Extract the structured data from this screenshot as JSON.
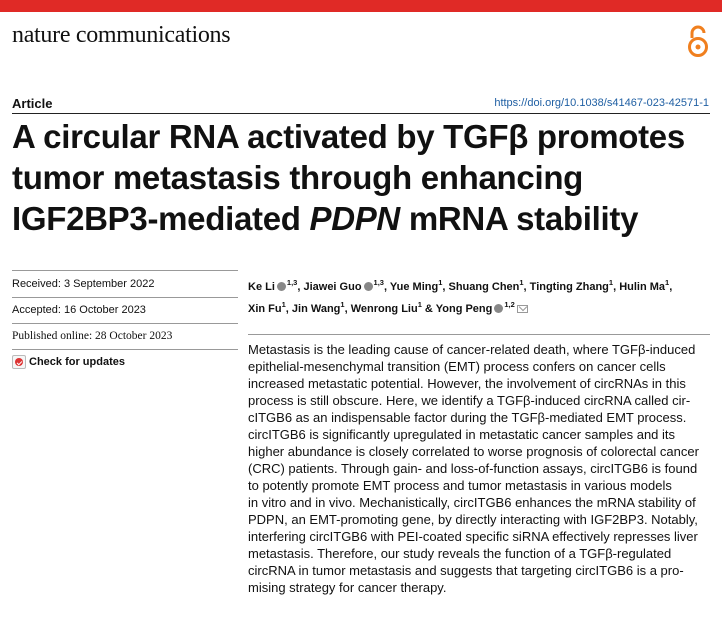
{
  "journal": {
    "name": "nature communications"
  },
  "icons": {
    "open_access": "open-access-icon",
    "orcid": "orcid-icon",
    "email": "mail-icon",
    "check_updates": "check-for-updates-icon"
  },
  "colors": {
    "accent_bar": "#e02a26",
    "open_access": "#f07f1e",
    "doi_link": "#1f5fa3"
  },
  "article": {
    "type": "Article",
    "doi": "https://doi.org/10.1038/s41467-023-42571-1",
    "title_lines": [
      "A circular RNA activated by TGFβ promotes",
      "tumor metastasis through enhancing",
      "IGF2BP3-mediated ",
      "PDPN",
      " mRNA stability"
    ]
  },
  "dates": {
    "received": "Received: 3 September 2022",
    "accepted": "Accepted: 16 October 2023",
    "published": "Published online: 28 October 2023",
    "check_updates": "Check for updates"
  },
  "authors": [
    {
      "name": "Ke Li",
      "sup": "1,3",
      "orcid": true
    },
    {
      "name": "Jiawei Guo",
      "sup": "1,3",
      "orcid": true
    },
    {
      "name": "Yue Ming",
      "sup": "1",
      "orcid": false
    },
    {
      "name": "Shuang Chen",
      "sup": "1",
      "orcid": false
    },
    {
      "name": "Tingting Zhang",
      "sup": "1",
      "orcid": false
    },
    {
      "name": "Hulin Ma",
      "sup": "1",
      "orcid": false
    },
    {
      "name": "Xin Fu",
      "sup": "1",
      "orcid": false
    },
    {
      "name": "Jin Wang",
      "sup": "1",
      "orcid": false
    },
    {
      "name": "Wenrong Liu",
      "sup": "1",
      "orcid": false
    },
    {
      "name": "Yong Peng",
      "sup": "1,2",
      "orcid": true
    }
  ],
  "abstract_lines": [
    "Metastasis is the leading cause of cancer-related death, where TGFβ-induced",
    "epithelial-mesenchymal transition (EMT) process confers on cancer cells",
    "increased metastatic potential. However, the involvement of circRNAs in this",
    "process is still obscure. Here, we identify a TGFβ-induced circRNA called cir-",
    "cITGB6 as an indispensable factor during the TGFβ-mediated EMT process.",
    "circITGB6 is significantly upregulated in metastatic cancer samples and its",
    "higher abundance is closely correlated to worse prognosis of colorectal cancer",
    "(CRC) patients. Through gain- and loss-of-function assays, circITGB6 is found",
    "to potently promote EMT process and tumor metastasis in various models",
    "in vitro and in vivo. Mechanistically, circITGB6 enhances the mRNA stability of",
    "PDPN, an EMT-promoting gene, by directly interacting with IGF2BP3. Notably,",
    "interfering circITGB6 with PEI-coated specific siRNA effectively represses liver",
    "metastasis. Therefore, our study reveals the function of a TGFβ-regulated",
    "circRNA in tumor metastasis and suggests that targeting circITGB6 is a pro-",
    "mising strategy for cancer therapy."
  ]
}
